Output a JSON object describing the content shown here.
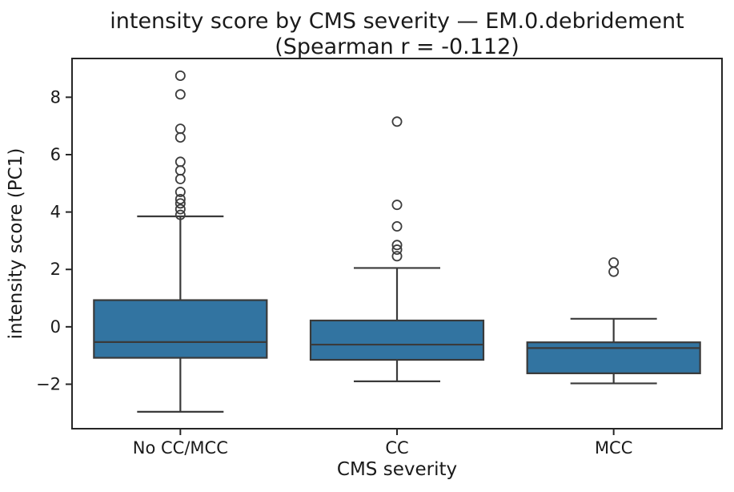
{
  "figure": {
    "background": "#ffffff",
    "text_color": "#1a1a1a",
    "frame_color": "#262626"
  },
  "chart_data": {
    "type": "boxplot",
    "title": "intensity score by CMS severity — EM.0.debridement",
    "subtitle": "(Spearman r = -0.112)",
    "xlabel": "CMS severity",
    "ylabel": "intensity score (PC1)",
    "categories": [
      "No CC/MCC",
      "CC",
      "MCC"
    ],
    "ylim": [
      -3.55,
      9.35
    ],
    "yticks": [
      8,
      6,
      4,
      2,
      0,
      -2
    ],
    "grid": false,
    "legend": null,
    "box_fill": "#3274a1",
    "line_color": "#3a3a3a",
    "marker_color": "#3d3d3d",
    "series": [
      {
        "category": "No CC/MCC",
        "whisker_low": -2.96,
        "q1": -1.08,
        "median": -0.53,
        "q3": 0.93,
        "whisker_high": 3.85,
        "outliers": [
          3.9,
          4.1,
          4.3,
          4.45,
          4.7,
          5.15,
          5.45,
          5.75,
          6.6,
          6.9,
          8.1,
          8.75
        ]
      },
      {
        "category": "CC",
        "whisker_low": -1.9,
        "q1": -1.15,
        "median": -0.62,
        "q3": 0.22,
        "whisker_high": 2.05,
        "outliers": [
          2.46,
          2.69,
          2.85,
          3.5,
          4.25,
          7.15
        ]
      },
      {
        "category": "MCC",
        "whisker_low": -1.97,
        "q1": -1.62,
        "median": -0.74,
        "q3": -0.54,
        "whisker_high": 0.28,
        "outliers": [
          1.92,
          2.24
        ]
      }
    ]
  }
}
